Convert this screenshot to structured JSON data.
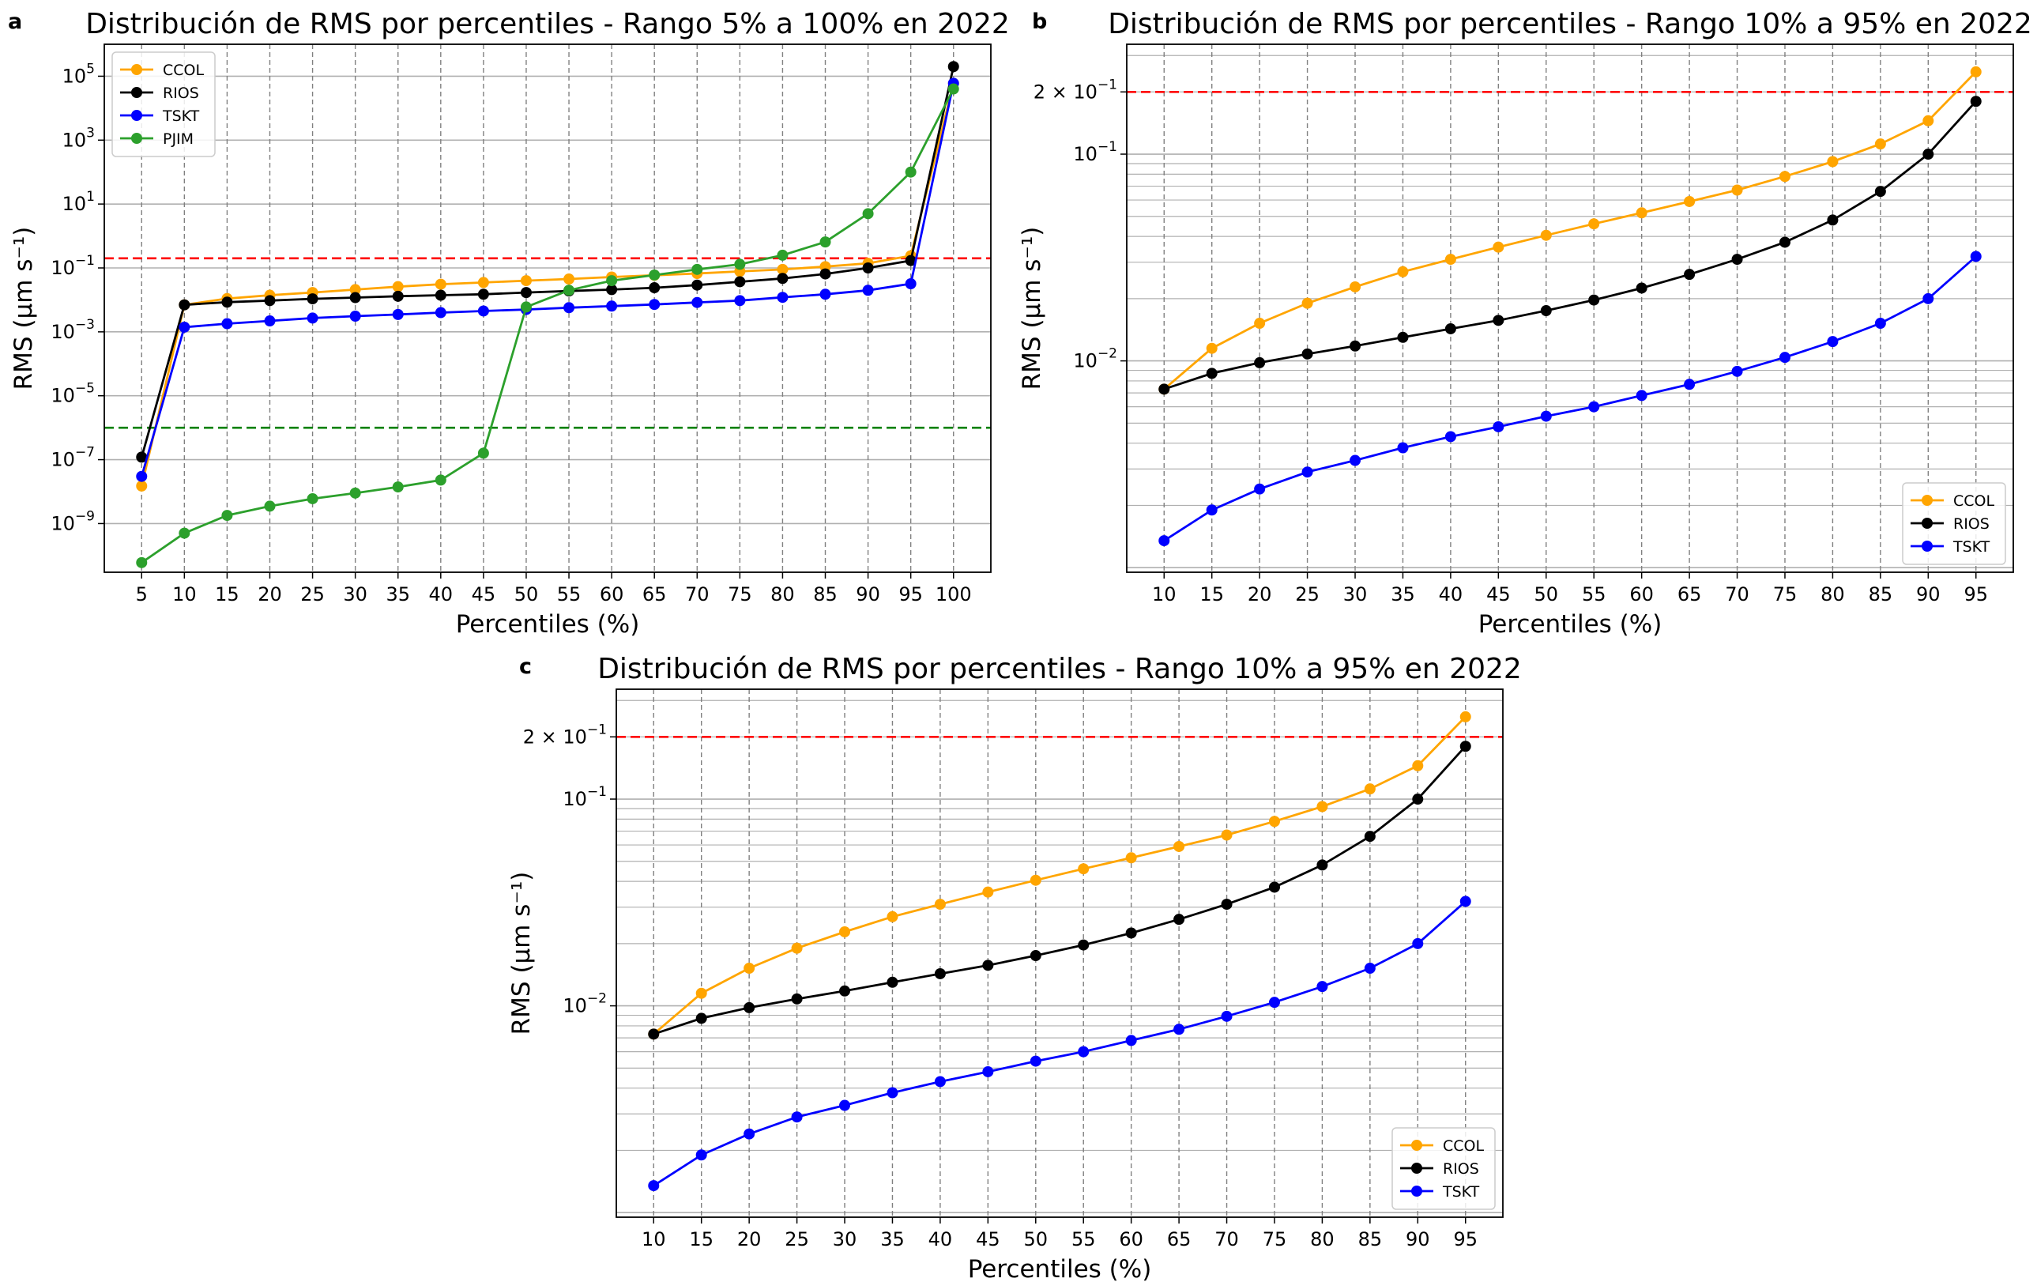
{
  "chart_data": [
    {
      "panel": "a",
      "type": "line",
      "title": "Distribución de RMS por percentiles - Rango 5% a 100% en 2022",
      "xlabel": "Percentiles (%)",
      "ylabel": "RMS (µm s⁻¹)",
      "yscale": "log",
      "ylim": [
        3e-11,
        1000000.0
      ],
      "x": [
        5,
        10,
        15,
        20,
        25,
        30,
        35,
        40,
        45,
        50,
        55,
        60,
        65,
        70,
        75,
        80,
        85,
        90,
        95,
        100
      ],
      "xticks": [
        "5",
        "10",
        "15",
        "20",
        "25",
        "30",
        "35",
        "40",
        "45",
        "50",
        "55",
        "60",
        "65",
        "70",
        "75",
        "80",
        "85",
        "90",
        "95",
        "100"
      ],
      "yticks": [
        {
          "value": 1e-09,
          "base": "10",
          "exp": "−9"
        },
        {
          "value": 1e-07,
          "base": "10",
          "exp": "−7"
        },
        {
          "value": 1e-05,
          "base": "10",
          "exp": "−5"
        },
        {
          "value": 0.001,
          "base": "10",
          "exp": "−3"
        },
        {
          "value": 0.1,
          "base": "10",
          "exp": "−1"
        },
        {
          "value": 10.0,
          "base": "10",
          "exp": "1"
        },
        {
          "value": 1000.0,
          "base": "10",
          "exp": "3"
        },
        {
          "value": 100000.0,
          "base": "10",
          "exp": "5"
        }
      ],
      "grid": true,
      "legend_position": "upper-left",
      "hlines": [
        {
          "value": 0.2,
          "color": "#ff0000"
        },
        {
          "value": 1e-06,
          "color": "#008000"
        }
      ],
      "series": [
        {
          "name": "CCOL",
          "color": "#ffa500",
          "values": [
            1.5e-08,
            0.007,
            0.011,
            0.014,
            0.017,
            0.021,
            0.026,
            0.031,
            0.035,
            0.04,
            0.045,
            0.052,
            0.059,
            0.067,
            0.078,
            0.09,
            0.11,
            0.14,
            0.24,
            60000
          ]
        },
        {
          "name": "RIOS",
          "color": "#000000",
          "values": [
            1.2e-07,
            0.007,
            0.0085,
            0.0095,
            0.0108,
            0.0118,
            0.013,
            0.014,
            0.015,
            0.017,
            0.019,
            0.021,
            0.024,
            0.029,
            0.037,
            0.047,
            0.065,
            0.1,
            0.17,
            200000
          ]
        },
        {
          "name": "TSKT",
          "color": "#0000ff",
          "values": [
            3e-08,
            0.0014,
            0.0018,
            0.0022,
            0.0027,
            0.0031,
            0.0035,
            0.004,
            0.0045,
            0.005,
            0.0057,
            0.0064,
            0.0072,
            0.0083,
            0.0095,
            0.012,
            0.015,
            0.02,
            0.032,
            60000
          ]
        },
        {
          "name": "PJIM",
          "color": "#2ca02c",
          "values": [
            6e-11,
            5e-10,
            1.8e-09,
            3.5e-09,
            6e-09,
            9e-09,
            1.4e-08,
            2.3e-08,
            1.6e-07,
            0.006,
            0.02,
            0.04,
            0.06,
            0.09,
            0.13,
            0.25,
            0.65,
            5,
            100,
            40000
          ]
        }
      ]
    },
    {
      "panel": "b",
      "type": "line",
      "title": "Distribución de RMS por percentiles - Rango 10% a 95% en 2022",
      "xlabel": "Percentiles (%)",
      "ylabel": "RMS (µm s⁻¹)",
      "yscale": "log",
      "ylim": [
        0.00095,
        0.34
      ],
      "x": [
        10,
        15,
        20,
        25,
        30,
        35,
        40,
        45,
        50,
        55,
        60,
        65,
        70,
        75,
        80,
        85,
        90,
        95
      ],
      "xticks": [
        "10",
        "15",
        "20",
        "25",
        "30",
        "35",
        "40",
        "45",
        "50",
        "55",
        "60",
        "65",
        "70",
        "75",
        "80",
        "85",
        "90",
        "95"
      ],
      "yticks": [
        {
          "value": 0.01,
          "base": "10",
          "exp": "−2"
        },
        {
          "value": 0.1,
          "base": "10",
          "exp": "−1"
        }
      ],
      "hline_label": {
        "value": 0.2,
        "text": "2 × 10",
        "exp": "−1",
        "color": "#ff0000"
      },
      "grid": true,
      "legend_position": "lower-right",
      "hlines": [
        {
          "value": 0.2,
          "color": "#ff0000"
        }
      ],
      "series": [
        {
          "name": "CCOL",
          "color": "#ffa500",
          "values": [
            0.0073,
            0.0115,
            0.0152,
            0.019,
            0.0228,
            0.027,
            0.031,
            0.0355,
            0.0405,
            0.046,
            0.052,
            0.059,
            0.067,
            0.078,
            0.092,
            0.112,
            0.145,
            0.25
          ]
        },
        {
          "name": "RIOS",
          "color": "#000000",
          "values": [
            0.0073,
            0.0087,
            0.0098,
            0.0108,
            0.0118,
            0.013,
            0.0143,
            0.0157,
            0.0175,
            0.0197,
            0.0225,
            0.0262,
            0.031,
            0.0375,
            0.048,
            0.066,
            0.1,
            0.18
          ]
        },
        {
          "name": "TSKT",
          "color": "#0000ff",
          "values": [
            0.00135,
            0.0019,
            0.0024,
            0.0029,
            0.0033,
            0.0038,
            0.0043,
            0.0048,
            0.0054,
            0.006,
            0.0068,
            0.0077,
            0.0089,
            0.0104,
            0.0124,
            0.0152,
            0.02,
            0.032
          ]
        }
      ]
    },
    {
      "panel": "c",
      "type": "line",
      "title": "Distribución de RMS por percentiles - Rango 10% a 95% en 2022",
      "xlabel": "Percentiles (%)",
      "ylabel": "RMS (µm s⁻¹)",
      "yscale": "log",
      "ylim": [
        0.00095,
        0.34
      ],
      "x": [
        10,
        15,
        20,
        25,
        30,
        35,
        40,
        45,
        50,
        55,
        60,
        65,
        70,
        75,
        80,
        85,
        90,
        95
      ],
      "xticks": [
        "10",
        "15",
        "20",
        "25",
        "30",
        "35",
        "40",
        "45",
        "50",
        "55",
        "60",
        "65",
        "70",
        "75",
        "80",
        "85",
        "90",
        "95"
      ],
      "yticks": [
        {
          "value": 0.01,
          "base": "10",
          "exp": "−2"
        },
        {
          "value": 0.1,
          "base": "10",
          "exp": "−1"
        }
      ],
      "hline_label": {
        "value": 0.2,
        "text": "2 × 10",
        "exp": "−1",
        "color": "#ff0000"
      },
      "grid": true,
      "legend_position": "lower-right",
      "hlines": [
        {
          "value": 0.2,
          "color": "#ff0000"
        }
      ],
      "series": [
        {
          "name": "CCOL",
          "color": "#ffa500",
          "values": [
            0.0073,
            0.0115,
            0.0152,
            0.019,
            0.0228,
            0.027,
            0.031,
            0.0355,
            0.0405,
            0.046,
            0.052,
            0.059,
            0.067,
            0.078,
            0.092,
            0.112,
            0.145,
            0.25
          ]
        },
        {
          "name": "RIOS",
          "color": "#000000",
          "values": [
            0.0073,
            0.0087,
            0.0098,
            0.0108,
            0.0118,
            0.013,
            0.0143,
            0.0157,
            0.0175,
            0.0197,
            0.0225,
            0.0262,
            0.031,
            0.0375,
            0.048,
            0.066,
            0.1,
            0.18
          ]
        },
        {
          "name": "TSKT",
          "color": "#0000ff",
          "values": [
            0.00135,
            0.0019,
            0.0024,
            0.0029,
            0.0033,
            0.0038,
            0.0043,
            0.0048,
            0.0054,
            0.006,
            0.0068,
            0.0077,
            0.0089,
            0.0104,
            0.0124,
            0.0152,
            0.02,
            0.032
          ]
        }
      ]
    }
  ]
}
